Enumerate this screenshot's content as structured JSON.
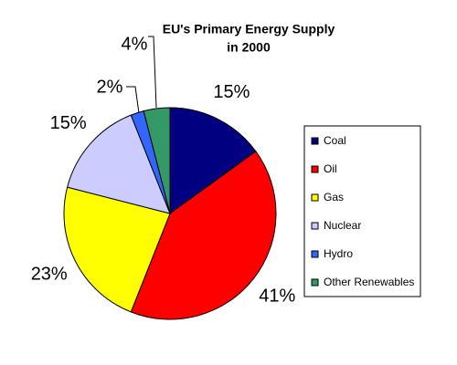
{
  "chart_data": {
    "type": "pie",
    "title": [
      "EU's Primary Energy Supply",
      "in 2000"
    ],
    "categories": [
      "Coal",
      "Oil",
      "Gas",
      "Nuclear",
      "Hydro",
      "Other Renewables"
    ],
    "values": [
      15,
      41,
      23,
      15,
      2,
      4
    ],
    "value_labels": [
      "15%",
      "41%",
      "23%",
      "15%",
      "2%",
      "4%"
    ],
    "colors": [
      "#000080",
      "#ff0000",
      "#ffff00",
      "#ccccff",
      "#3366ff",
      "#339966"
    ],
    "legend": "right"
  }
}
